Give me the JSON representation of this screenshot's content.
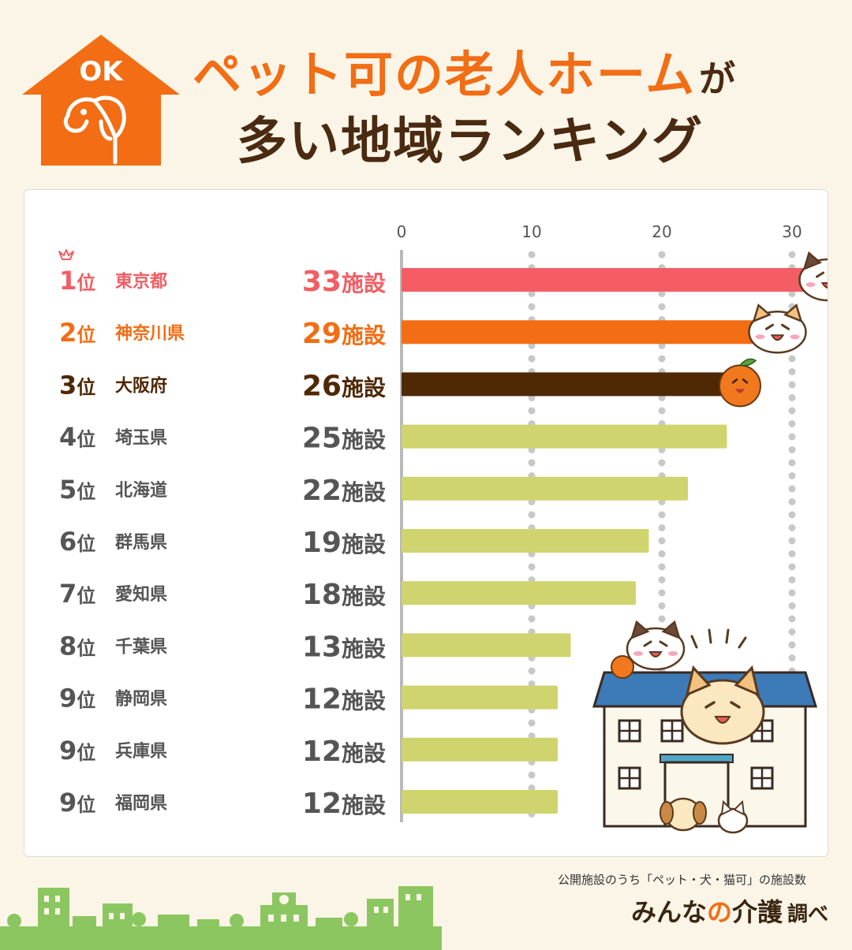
{
  "header": {
    "logo_text": "OK",
    "title_line1": "ペット可の老人ホーム",
    "title_line1_suffix": "が",
    "title_line2": "多い地域ランキング"
  },
  "colors": {
    "background": "#fbf5e8",
    "accent_orange": "#f26d14",
    "dark_brown": "#4a2a10",
    "rank1_red": "#f35d63",
    "rank3_brown": "#4f2805",
    "bar_default": "#cfd46e",
    "grid_dot": "#c8c8c8",
    "skyline_green": "#8cc660"
  },
  "chart_data": {
    "type": "bar",
    "orientation": "horizontal",
    "xlim": [
      0,
      33
    ],
    "xticks": [
      0,
      10,
      20,
      30
    ],
    "grid": "dotted vertical",
    "rows": [
      {
        "rank": "1",
        "rank_suffix": "位",
        "prefecture": "東京都",
        "value": 33,
        "unit": "施設",
        "color": "#f35d63",
        "crown": true
      },
      {
        "rank": "2",
        "rank_suffix": "位",
        "prefecture": "神奈川県",
        "value": 29,
        "unit": "施設",
        "color": "#f26d14"
      },
      {
        "rank": "3",
        "rank_suffix": "位",
        "prefecture": "大阪府",
        "value": 26,
        "unit": "施設",
        "color": "#4f2805"
      },
      {
        "rank": "4",
        "rank_suffix": "位",
        "prefecture": "埼玉県",
        "value": 25,
        "unit": "施設",
        "color": "#cfd46e"
      },
      {
        "rank": "5",
        "rank_suffix": "位",
        "prefecture": "北海道",
        "value": 22,
        "unit": "施設",
        "color": "#cfd46e"
      },
      {
        "rank": "6",
        "rank_suffix": "位",
        "prefecture": "群馬県",
        "value": 19,
        "unit": "施設",
        "color": "#cfd46e"
      },
      {
        "rank": "7",
        "rank_suffix": "位",
        "prefecture": "愛知県",
        "value": 18,
        "unit": "施設",
        "color": "#cfd46e"
      },
      {
        "rank": "8",
        "rank_suffix": "位",
        "prefecture": "千葉県",
        "value": 13,
        "unit": "施設",
        "color": "#cfd46e"
      },
      {
        "rank": "9",
        "rank_suffix": "位",
        "prefecture": "静岡県",
        "value": 12,
        "unit": "施設",
        "color": "#cfd46e"
      },
      {
        "rank": "9",
        "rank_suffix": "位",
        "prefecture": "兵庫県",
        "value": 12,
        "unit": "施設",
        "color": "#cfd46e"
      },
      {
        "rank": "9",
        "rank_suffix": "位",
        "prefecture": "福岡県",
        "value": 12,
        "unit": "施設",
        "color": "#cfd46e"
      }
    ]
  },
  "footer": {
    "note": "公開施設のうち「ペット・犬・猫可」の施設数",
    "brand_pre": "みんな",
    "brand_o": "の",
    "brand_post": "介護",
    "survey": "調べ"
  }
}
